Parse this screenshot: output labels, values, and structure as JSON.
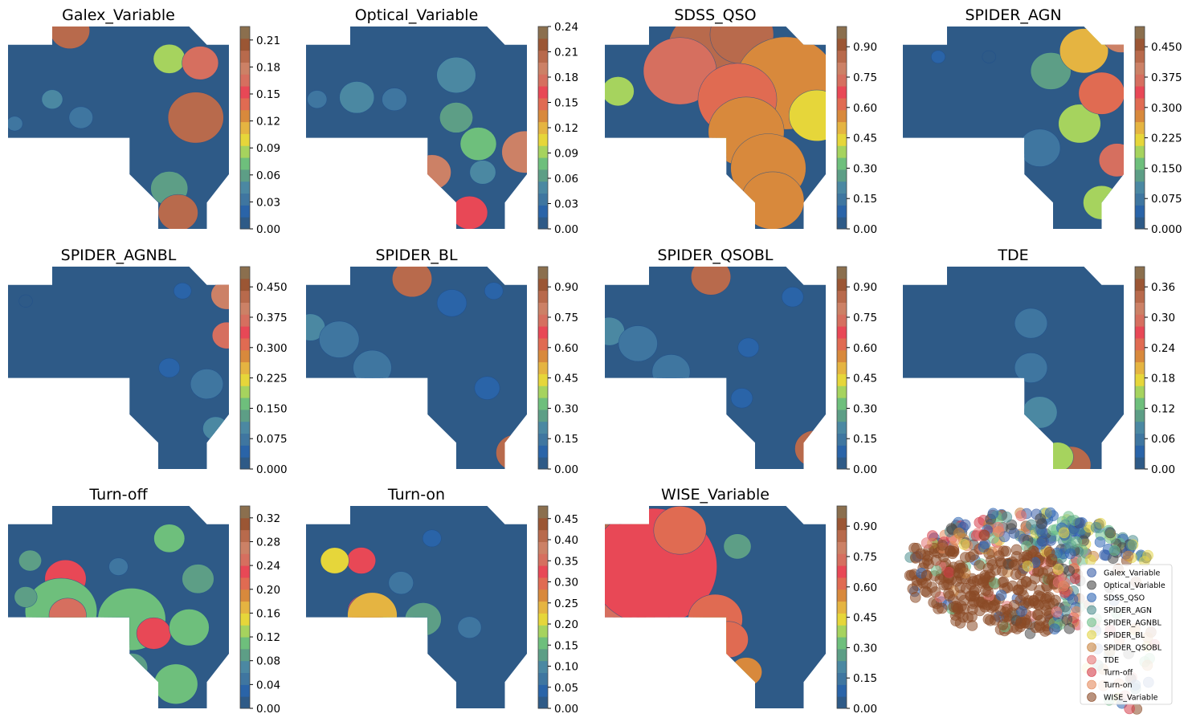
{
  "colors": {
    "bands": [
      "#2e5a87",
      "#2a64a8",
      "#3f76a0",
      "#4b88a2",
      "#5d9e86",
      "#6ebf7c",
      "#a6d35e",
      "#e6d63a",
      "#e5b441",
      "#d8893c",
      "#e06b52",
      "#e84856",
      "#d66f5f",
      "#cc8166",
      "#b86a4c",
      "#9b5634",
      "#8b6f4e"
    ],
    "scatter": [
      "#3b5fa8",
      "#4b4b4b",
      "#2f66b4",
      "#4f8f8f",
      "#6ec08a",
      "#e3d54a",
      "#c8833f",
      "#e47575",
      "#d63f4c",
      "#e58b5d",
      "#8b4a26"
    ]
  },
  "chart_data": [
    {
      "type": "heatmap",
      "title": "Galex_Variable",
      "ticks": [
        "0.00",
        "0.03",
        "0.06",
        "0.09",
        "0.12",
        "0.15",
        "0.18",
        "0.21"
      ],
      "vmax": 0.225,
      "hotspots": [
        [
          0.28,
          0.02,
          0.22,
          0.05
        ],
        [
          0.73,
          0.16,
          0.1,
          0.06
        ],
        [
          0.87,
          0.18,
          0.19,
          0.05
        ],
        [
          0.85,
          0.45,
          0.22,
          0.07
        ],
        [
          0.2,
          0.36,
          0.05,
          0.05
        ],
        [
          0.33,
          0.45,
          0.04,
          0.06
        ],
        [
          0.73,
          0.8,
          0.07,
          0.08
        ],
        [
          0.77,
          0.92,
          0.22,
          0.05
        ],
        [
          0.03,
          0.48,
          0.04,
          0.04
        ]
      ]
    },
    {
      "type": "heatmap",
      "title": "Optical_Variable",
      "ticks": [
        "0.00",
        "0.03",
        "0.06",
        "0.09",
        "0.12",
        "0.15",
        "0.18",
        "0.21",
        "0.24"
      ],
      "vmax": 0.24,
      "hotspots": [
        [
          0.05,
          0.36,
          0.04,
          0.05
        ],
        [
          0.23,
          0.35,
          0.06,
          0.08
        ],
        [
          0.4,
          0.36,
          0.05,
          0.06
        ],
        [
          0.68,
          0.24,
          0.06,
          0.09
        ],
        [
          0.68,
          0.45,
          0.08,
          0.07
        ],
        [
          0.78,
          0.58,
          0.1,
          0.07
        ],
        [
          0.99,
          0.62,
          0.22,
          0.06
        ],
        [
          0.57,
          0.72,
          0.22,
          0.05
        ],
        [
          0.8,
          0.72,
          0.06,
          0.06
        ],
        [
          0.74,
          0.92,
          0.2,
          0.05
        ],
        [
          0.61,
          0.97,
          0.05,
          0.05
        ]
      ]
    },
    {
      "type": "heatmap",
      "title": "SDSS_QSO",
      "ticks": [
        "0.00",
        "0.15",
        "0.30",
        "0.45",
        "0.60",
        "0.75",
        "0.90"
      ],
      "vmax": 1.0,
      "hotspots": [
        [
          0.5,
          0.12,
          0.98,
          0.12
        ],
        [
          0.62,
          0.04,
          0.98,
          0.08
        ],
        [
          0.34,
          0.22,
          0.85,
          0.1
        ],
        [
          0.82,
          0.28,
          0.65,
          0.16
        ],
        [
          0.6,
          0.36,
          0.7,
          0.12
        ],
        [
          0.64,
          0.52,
          0.65,
          0.12
        ],
        [
          0.74,
          0.7,
          0.64,
          0.12
        ],
        [
          0.76,
          0.86,
          0.64,
          0.1
        ],
        [
          0.96,
          0.44,
          0.5,
          0.1
        ],
        [
          0.06,
          0.32,
          0.45,
          0.06
        ]
      ]
    },
    {
      "type": "heatmap",
      "title": "SPIDER_AGN",
      "ticks": [
        "0.000",
        "0.075",
        "0.150",
        "0.225",
        "0.300",
        "0.375",
        "0.450"
      ],
      "vmax": 0.5,
      "hotspots": [
        [
          0.67,
          0.22,
          0.14,
          0.09
        ],
        [
          0.82,
          0.12,
          0.3,
          0.08
        ],
        [
          0.8,
          0.48,
          0.22,
          0.08
        ],
        [
          0.9,
          0.33,
          0.35,
          0.07
        ],
        [
          0.99,
          0.04,
          0.48,
          0.05
        ],
        [
          0.97,
          0.66,
          0.42,
          0.05
        ],
        [
          0.9,
          0.87,
          0.22,
          0.07
        ],
        [
          0.62,
          0.6,
          0.1,
          0.1
        ],
        [
          0.16,
          0.15,
          0.04,
          0.04
        ],
        [
          0.39,
          0.15,
          0.03,
          0.04
        ]
      ]
    },
    {
      "type": "heatmap",
      "title": "SPIDER_AGNBL",
      "ticks": [
        "0.000",
        "0.075",
        "0.150",
        "0.225",
        "0.300",
        "0.375",
        "0.450"
      ],
      "vmax": 0.5,
      "hotspots": [
        [
          0.99,
          0.14,
          0.48,
          0.04
        ],
        [
          0.99,
          0.34,
          0.42,
          0.04
        ],
        [
          0.9,
          0.58,
          0.1,
          0.08
        ],
        [
          0.94,
          0.8,
          0.12,
          0.06
        ],
        [
          0.08,
          0.17,
          0.03,
          0.04
        ],
        [
          0.79,
          0.12,
          0.04,
          0.05
        ],
        [
          0.73,
          0.5,
          0.04,
          0.06
        ]
      ]
    },
    {
      "type": "heatmap",
      "title": "SPIDER_BL",
      "ticks": [
        "0.00",
        "0.15",
        "0.30",
        "0.45",
        "0.60",
        "0.75",
        "0.90"
      ],
      "vmax": 1.0,
      "hotspots": [
        [
          0.02,
          0.3,
          0.22,
          0.07
        ],
        [
          0.15,
          0.36,
          0.18,
          0.1
        ],
        [
          0.3,
          0.5,
          0.15,
          0.1
        ],
        [
          0.48,
          0.06,
          0.98,
          0.05
        ],
        [
          0.95,
          0.92,
          0.98,
          0.05
        ],
        [
          0.85,
          0.12,
          0.12,
          0.05
        ],
        [
          0.66,
          0.18,
          0.12,
          0.08
        ],
        [
          0.82,
          0.6,
          0.1,
          0.07
        ]
      ]
    },
    {
      "type": "heatmap",
      "title": "SPIDER_QSOBL",
      "ticks": [
        "0.00",
        "0.15",
        "0.30",
        "0.45",
        "0.60",
        "0.75",
        "0.90"
      ],
      "vmax": 1.0,
      "hotspots": [
        [
          0.02,
          0.32,
          0.26,
          0.07
        ],
        [
          0.15,
          0.38,
          0.16,
          0.1
        ],
        [
          0.3,
          0.52,
          0.14,
          0.1
        ],
        [
          0.48,
          0.05,
          0.98,
          0.05
        ],
        [
          0.95,
          0.9,
          0.98,
          0.05
        ],
        [
          0.85,
          0.15,
          0.1,
          0.06
        ],
        [
          0.65,
          0.4,
          0.08,
          0.06
        ],
        [
          0.62,
          0.65,
          0.1,
          0.06
        ]
      ]
    },
    {
      "type": "heatmap",
      "title": "TDE",
      "ticks": [
        "0.00",
        "0.06",
        "0.12",
        "0.18",
        "0.24",
        "0.30",
        "0.36"
      ],
      "vmax": 0.4,
      "hotspots": [
        [
          0.58,
          0.28,
          0.08,
          0.08
        ],
        [
          0.58,
          0.5,
          0.08,
          0.08
        ],
        [
          0.62,
          0.72,
          0.1,
          0.08
        ],
        [
          0.76,
          0.98,
          0.4,
          0.05
        ],
        [
          0.7,
          0.94,
          0.18,
          0.06
        ]
      ]
    },
    {
      "type": "heatmap",
      "title": "Turn-off",
      "ticks": [
        "0.00",
        "0.04",
        "0.08",
        "0.12",
        "0.16",
        "0.20",
        "0.24",
        "0.28",
        "0.32"
      ],
      "vmax": 0.34,
      "hotspots": [
        [
          0.26,
          0.36,
          0.26,
          0.06
        ],
        [
          0.24,
          0.52,
          0.14,
          0.14
        ],
        [
          0.56,
          0.56,
          0.12,
          0.14
        ],
        [
          0.66,
          0.63,
          0.26,
          0.05
        ],
        [
          0.82,
          0.6,
          0.13,
          0.08
        ],
        [
          0.73,
          0.16,
          0.14,
          0.06
        ],
        [
          0.5,
          0.3,
          0.05,
          0.05
        ],
        [
          0.27,
          0.54,
          0.3,
          0.05
        ],
        [
          0.1,
          0.27,
          0.1,
          0.05
        ],
        [
          0.08,
          0.45,
          0.1,
          0.05
        ],
        [
          0.86,
          0.36,
          0.1,
          0.07
        ],
        [
          0.76,
          0.88,
          0.12,
          0.09
        ],
        [
          0.56,
          0.8,
          0.1,
          0.07
        ]
      ]
    },
    {
      "type": "heatmap",
      "title": "Turn-on",
      "ticks": [
        "0.00",
        "0.05",
        "0.10",
        "0.15",
        "0.20",
        "0.25",
        "0.30",
        "0.35",
        "0.40",
        "0.45"
      ],
      "vmax": 0.48,
      "hotspots": [
        [
          0.27,
          0.52,
          0.4,
          0.05
        ],
        [
          0.3,
          0.54,
          0.3,
          0.08
        ],
        [
          0.25,
          0.27,
          0.4,
          0.04
        ],
        [
          0.13,
          0.27,
          0.25,
          0.05
        ],
        [
          0.53,
          0.56,
          0.14,
          0.08
        ],
        [
          0.43,
          0.38,
          0.1,
          0.06
        ],
        [
          0.74,
          0.6,
          0.08,
          0.06
        ],
        [
          0.6,
          0.9,
          0.06,
          0.05
        ],
        [
          0.57,
          0.16,
          0.06,
          0.05
        ]
      ]
    },
    {
      "type": "heatmap",
      "title": "WISE_Variable",
      "ticks": [
        "0.00",
        "0.15",
        "0.30",
        "0.45",
        "0.60",
        "0.75",
        "0.90"
      ],
      "vmax": 1.0,
      "hotspots": [
        [
          0.02,
          0.3,
          0.98,
          0.12
        ],
        [
          0.08,
          0.36,
          0.9,
          0.14
        ],
        [
          0.22,
          0.3,
          0.8,
          0.18
        ],
        [
          0.34,
          0.12,
          0.7,
          0.08
        ],
        [
          0.5,
          0.56,
          0.75,
          0.08
        ],
        [
          0.56,
          0.66,
          0.7,
          0.06
        ],
        [
          0.64,
          0.82,
          0.65,
          0.05
        ],
        [
          0.6,
          0.2,
          0.3,
          0.06
        ]
      ]
    }
  ],
  "scatter_chart": {
    "type": "scatter",
    "legend_position": "lower-right",
    "legend": [
      "Galex_Variable",
      "Optical_Variable",
      "SDSS_QSO",
      "SPIDER_AGN",
      "SPIDER_AGNBL",
      "SPIDER_BL",
      "SPIDER_QSOBL",
      "TDE",
      "Turn-off",
      "Turn-on",
      "WISE_Variable"
    ]
  }
}
